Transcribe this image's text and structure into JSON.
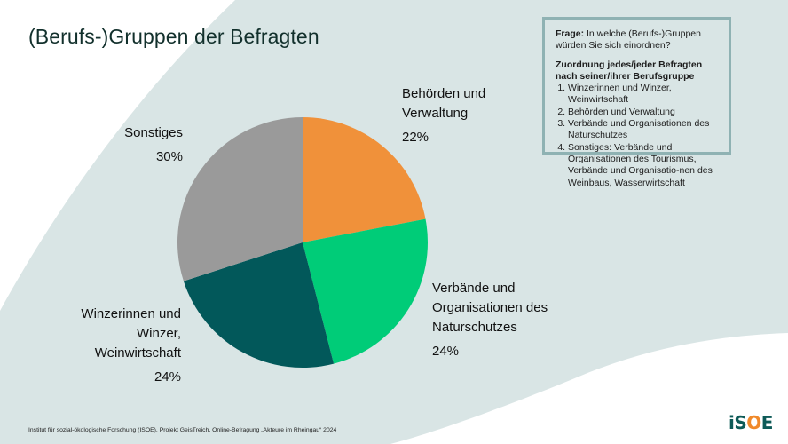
{
  "title": "(Berufs-)Gruppen der Befragten",
  "info_box": {
    "question_label": "Frage:",
    "question_text": " In welche (Berufs-)Gruppen würden Sie sich einordnen?",
    "assignment_heading": "Zuordnung jedes/jeder Befragten nach seiner/ihrer Berufsgruppe",
    "items": [
      "Winzerinnen und Winzer, Weinwirtschaft",
      "Behörden und Verwaltung",
      "Verbände und Organisationen des Naturschutzes",
      "Sonstiges: Verbände und Organisationen des Tourismus, Verbände und Organisatio-nen des Weinbaus, Wasserwirtschaft"
    ]
  },
  "colors": {
    "background_shape": "#d9e5e5",
    "info_border": "#8fb2b3",
    "title": "#12302c"
  },
  "chart_data": {
    "type": "pie",
    "title": "(Berufs-)Gruppen der Befragten",
    "start_angle": "12 o'clock",
    "direction": "clockwise",
    "slices": [
      {
        "label": "Behörden und Verwaltung",
        "value": 22,
        "display": "22%",
        "color": "#f0913a"
      },
      {
        "label": "Verbände und Organisationen des Naturschutzes",
        "value": 24,
        "display": "24%",
        "color": "#00cc78"
      },
      {
        "label": "Winzerinnen und Winzer, Weinwirtschaft",
        "value": 24,
        "display": "24%",
        "color": "#02585a"
      },
      {
        "label": "Sonstiges",
        "value": 30,
        "display": "30%",
        "color": "#9a9a9a"
      }
    ],
    "legend": "none (direct labels)"
  },
  "labels": {
    "behoerden": {
      "line1": "Behörden und",
      "line2": "Verwaltung",
      "pct": "22%"
    },
    "verbaende": {
      "line1": "Verbände und",
      "line2": "Organisationen des",
      "line3": "Naturschutzes",
      "pct": "24%"
    },
    "winzer": {
      "line1": "Winzerinnen und",
      "line2": "Winzer,",
      "line3": "Weinwirtschaft",
      "pct": "24%"
    },
    "sonstiges": {
      "line1": "Sonstiges",
      "pct": "30%"
    }
  },
  "footer": "Institut für sozial-ökologische Forschung (ISOE), Projekt GeisTreich, Online-Befragung „Akteure im Rheingau“ 2024",
  "logo": {
    "part1": "iS",
    "part2": "O",
    "part3": "E"
  }
}
